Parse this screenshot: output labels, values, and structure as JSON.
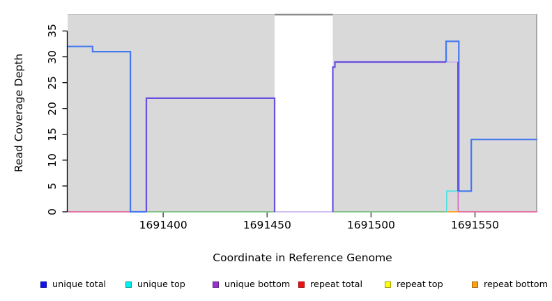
{
  "chart_data": {
    "type": "line",
    "title": "",
    "xlabel": "Coordinate in Reference Genome",
    "ylabel": "Read Coverage Depth",
    "xlim": [
      1691354,
      1691580
    ],
    "ylim": [
      0,
      38.3
    ],
    "x_ticks": [
      "1691400",
      "1691450",
      "1691500",
      "1691550"
    ],
    "x_tick_values": [
      1691400,
      1691450,
      1691500,
      1691550
    ],
    "y_ticks": [
      "0",
      "5",
      "10",
      "15",
      "20",
      "25",
      "30",
      "35"
    ],
    "y_tick_values": [
      0,
      5,
      10,
      15,
      20,
      25,
      30,
      35
    ],
    "plot_background_color": "#d9d9d9",
    "grid": false,
    "legend_position": "bottom",
    "gap_region": {
      "x_start": 1691453.6,
      "x_end": 1691481.6,
      "fill": "#ffffff",
      "top_line_color": "#8a8a8a"
    },
    "legend": [
      {
        "label": "unique total",
        "fill": "#1212ee",
        "border": "#000099"
      },
      {
        "label": "unique top",
        "fill": "#00eeee",
        "border": "#009999"
      },
      {
        "label": "unique bottom",
        "fill": "#9632d2",
        "border": "#5a1e86"
      },
      {
        "label": "repeat total",
        "fill": "#ee1111",
        "border": "#990000"
      },
      {
        "label": "repeat top",
        "fill": "#ffff00",
        "border": "#999900"
      },
      {
        "label": "repeat bottom",
        "fill": "#ffa012",
        "border": "#a36400"
      }
    ],
    "series": [
      {
        "name": "repeat total baseline",
        "color": "#e2639b",
        "width": 1.8,
        "paths": [
          [
            [
              1691354,
              0
            ],
            [
              1691384.2,
              0
            ]
          ],
          [
            [
              1691542.1,
              0
            ],
            [
              1691580,
              0
            ]
          ]
        ]
      },
      {
        "name": "repeat total vertical",
        "color": "#cf64c4",
        "width": 1.6,
        "paths": [
          [
            [
              1691541.9,
              4
            ],
            [
              1691541.9,
              0
            ]
          ]
        ]
      },
      {
        "name": "top-strand baseline",
        "color": "#79bf7d",
        "width": 1.8,
        "paths": [
          [
            [
              1691391.9,
              0
            ],
            [
              1691453.6,
              0
            ]
          ],
          [
            [
              1691481.6,
              0
            ],
            [
              1691536.4,
              0
            ]
          ]
        ]
      },
      {
        "name": "unique bottom faint",
        "color": "#cbb4ef",
        "width": 1.8,
        "paths": [
          [
            [
              1691453.6,
              0
            ],
            [
              1691481.6,
              0
            ]
          ],
          [
            [
              1691536.1,
              29
            ],
            [
              1691542.1,
              29
            ]
          ]
        ]
      },
      {
        "name": "repeat bottom",
        "color": "#ff9f1a",
        "width": 1.8,
        "paths": [
          [
            [
              1691536.4,
              0
            ],
            [
              1691542.1,
              0
            ]
          ]
        ]
      },
      {
        "name": "unique top",
        "color": "#4fe3e8",
        "width": 1.8,
        "paths": [
          [
            [
              1691536.4,
              0
            ],
            [
              1691536.4,
              4
            ],
            [
              1691541.8,
              4
            ]
          ]
        ]
      },
      {
        "name": "unique total",
        "color": "#4478f0",
        "width": 2.2,
        "paths": [
          [
            [
              1691354,
              32
            ],
            [
              1691366,
              32
            ],
            [
              1691366,
              31
            ],
            [
              1691384.2,
              31
            ],
            [
              1691384.2,
              0
            ],
            [
              1691391.9,
              0
            ]
          ],
          [
            [
              1691536.1,
              29
            ],
            [
              1691536.1,
              33
            ],
            [
              1691542.2,
              33
            ],
            [
              1691542.2,
              4
            ],
            [
              1691548.2,
              4
            ],
            [
              1691548.2,
              14
            ],
            [
              1691580,
              14
            ]
          ]
        ]
      },
      {
        "name": "unique bottom",
        "color": "#6b4fe1",
        "width": 2.2,
        "paths": [
          [
            [
              1691391.9,
              0
            ],
            [
              1691391.9,
              22
            ],
            [
              1691453.6,
              22
            ],
            [
              1691453.6,
              0
            ]
          ],
          [
            [
              1691481.6,
              0
            ],
            [
              1691481.6,
              28
            ],
            [
              1691482.6,
              28
            ],
            [
              1691482.6,
              29
            ],
            [
              1691536.1,
              29
            ]
          ],
          [
            [
              1691541.8,
              29
            ],
            [
              1691541.8,
              4
            ]
          ]
        ]
      }
    ]
  }
}
